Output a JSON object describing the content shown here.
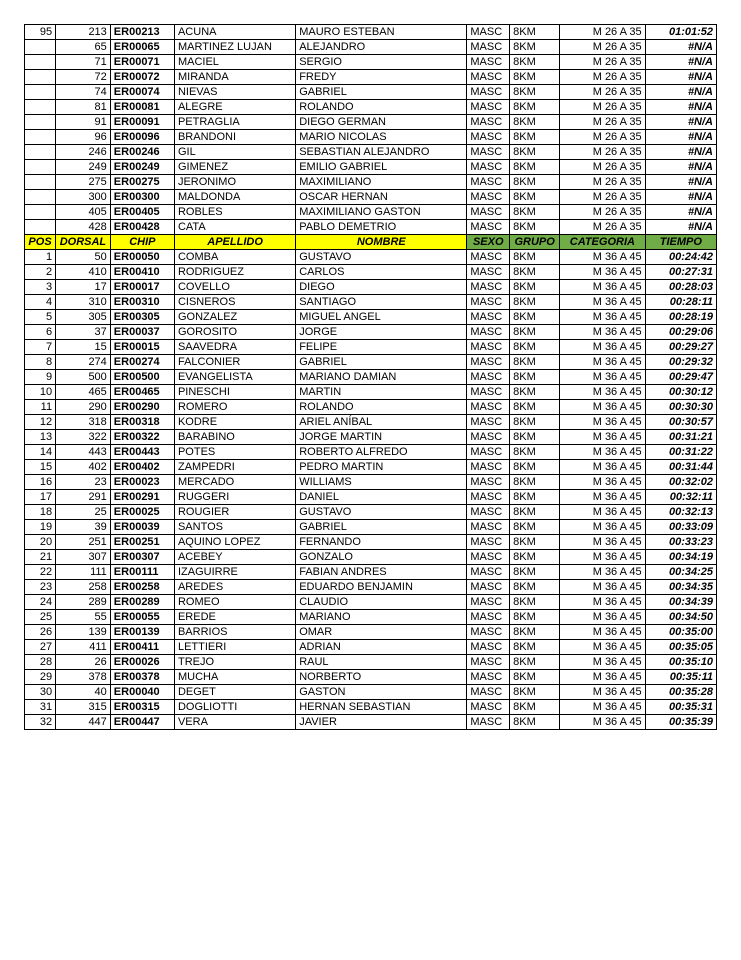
{
  "headers": {
    "pos": "POS",
    "dorsal": "DORSAL",
    "chip": "CHIP",
    "apellido": "APELLIDO",
    "nombre": "NOMBRE",
    "sexo": "SEXO",
    "grupo": "GRUPO",
    "categoria": "CATEGORIA",
    "tiempo": "TIEMPO"
  },
  "top_rows": [
    {
      "pos": "95",
      "dorsal": "213",
      "chip": "ER00213",
      "apellido": "ACUNA",
      "nombre": "MAURO ESTEBAN",
      "sexo": "MASC",
      "grupo": "8KM",
      "cat": "M 26 A 35",
      "tiempo": "01:01:52"
    },
    {
      "pos": "",
      "dorsal": "65",
      "chip": "ER00065",
      "apellido": "MARTINEZ LUJAN",
      "nombre": "ALEJANDRO",
      "sexo": "MASC",
      "grupo": "8KM",
      "cat": "M 26 A 35",
      "tiempo": "#N/A"
    },
    {
      "pos": "",
      "dorsal": "71",
      "chip": "ER00071",
      "apellido": "MACIEL",
      "nombre": "SERGIO",
      "sexo": "MASC",
      "grupo": "8KM",
      "cat": "M 26 A 35",
      "tiempo": "#N/A"
    },
    {
      "pos": "",
      "dorsal": "72",
      "chip": "ER00072",
      "apellido": "MIRANDA",
      "nombre": "FREDY",
      "sexo": "MASC",
      "grupo": "8KM",
      "cat": "M 26 A 35",
      "tiempo": "#N/A"
    },
    {
      "pos": "",
      "dorsal": "74",
      "chip": "ER00074",
      "apellido": "NIEVAS",
      "nombre": "GABRIEL",
      "sexo": "MASC",
      "grupo": "8KM",
      "cat": "M 26 A 35",
      "tiempo": "#N/A"
    },
    {
      "pos": "",
      "dorsal": "81",
      "chip": "ER00081",
      "apellido": "ALEGRE",
      "nombre": "ROLANDO",
      "sexo": "MASC",
      "grupo": "8KM",
      "cat": "M 26 A 35",
      "tiempo": "#N/A"
    },
    {
      "pos": "",
      "dorsal": "91",
      "chip": "ER00091",
      "apellido": "PETRAGLIA",
      "nombre": "DIEGO GERMAN",
      "sexo": "MASC",
      "grupo": "8KM",
      "cat": "M 26 A 35",
      "tiempo": "#N/A"
    },
    {
      "pos": "",
      "dorsal": "96",
      "chip": "ER00096",
      "apellido": "BRANDONI",
      "nombre": "MARIO NICOLAS",
      "sexo": "MASC",
      "grupo": "8KM",
      "cat": "M 26 A 35",
      "tiempo": "#N/A"
    },
    {
      "pos": "",
      "dorsal": "246",
      "chip": "ER00246",
      "apellido": "GIL",
      "nombre": "SEBASTIAN ALEJANDRO",
      "sexo": "MASC",
      "grupo": "8KM",
      "cat": "M 26 A 35",
      "tiempo": "#N/A"
    },
    {
      "pos": "",
      "dorsal": "249",
      "chip": "ER00249",
      "apellido": "GIMENEZ",
      "nombre": "EMILIO GABRIEL",
      "sexo": "MASC",
      "grupo": "8KM",
      "cat": "M 26 A 35",
      "tiempo": "#N/A"
    },
    {
      "pos": "",
      "dorsal": "275",
      "chip": "ER00275",
      "apellido": "JERONIMO",
      "nombre": "MAXIMILIANO",
      "sexo": "MASC",
      "grupo": "8KM",
      "cat": "M 26 A 35",
      "tiempo": "#N/A"
    },
    {
      "pos": "",
      "dorsal": "300",
      "chip": "ER00300",
      "apellido": "MALDONDA",
      "nombre": "OSCAR HERNAN",
      "sexo": "MASC",
      "grupo": "8KM",
      "cat": "M 26 A 35",
      "tiempo": "#N/A"
    },
    {
      "pos": "",
      "dorsal": "405",
      "chip": "ER00405",
      "apellido": "ROBLES",
      "nombre": "MAXIMILIANO GASTON",
      "sexo": "MASC",
      "grupo": "8KM",
      "cat": "M 26 A 35",
      "tiempo": "#N/A"
    },
    {
      "pos": "",
      "dorsal": "428",
      "chip": "ER00428",
      "apellido": "CATA",
      "nombre": "PABLO DEMETRIO",
      "sexo": "MASC",
      "grupo": "8KM",
      "cat": "M 26 A 35",
      "tiempo": "#N/A"
    }
  ],
  "bottom_rows": [
    {
      "pos": "1",
      "dorsal": "50",
      "chip": "ER00050",
      "apellido": "COMBA",
      "nombre": "GUSTAVO",
      "sexo": "MASC",
      "grupo": "8KM",
      "cat": "M 36 A 45",
      "tiempo": "00:24:42"
    },
    {
      "pos": "2",
      "dorsal": "410",
      "chip": "ER00410",
      "apellido": "RODRIGUEZ",
      "nombre": "CARLOS",
      "sexo": "MASC",
      "grupo": "8KM",
      "cat": "M 36 A 45",
      "tiempo": "00:27:31"
    },
    {
      "pos": "3",
      "dorsal": "17",
      "chip": "ER00017",
      "apellido": "COVELLO",
      "nombre": "DIEGO",
      "sexo": "MASC",
      "grupo": "8KM",
      "cat": "M 36 A 45",
      "tiempo": "00:28:03"
    },
    {
      "pos": "4",
      "dorsal": "310",
      "chip": "ER00310",
      "apellido": "CISNEROS",
      "nombre": "SANTIAGO",
      "sexo": "MASC",
      "grupo": "8KM",
      "cat": "M 36 A 45",
      "tiempo": "00:28:11"
    },
    {
      "pos": "5",
      "dorsal": "305",
      "chip": "ER00305",
      "apellido": "GONZALEZ",
      "nombre": "MIGUEL ANGEL",
      "sexo": "MASC",
      "grupo": "8KM",
      "cat": "M 36 A 45",
      "tiempo": "00:28:19"
    },
    {
      "pos": "6",
      "dorsal": "37",
      "chip": "ER00037",
      "apellido": "GOROSITO",
      "nombre": "JORGE",
      "sexo": "MASC",
      "grupo": "8KM",
      "cat": "M 36 A 45",
      "tiempo": "00:29:06"
    },
    {
      "pos": "7",
      "dorsal": "15",
      "chip": "ER00015",
      "apellido": "SAAVEDRA",
      "nombre": "FELIPE",
      "sexo": "MASC",
      "grupo": "8KM",
      "cat": "M 36 A 45",
      "tiempo": "00:29:27"
    },
    {
      "pos": "8",
      "dorsal": "274",
      "chip": "ER00274",
      "apellido": "FALCONIER",
      "nombre": "GABRIEL",
      "sexo": "MASC",
      "grupo": "8KM",
      "cat": "M 36 A 45",
      "tiempo": "00:29:32"
    },
    {
      "pos": "9",
      "dorsal": "500",
      "chip": "ER00500",
      "apellido": "EVANGELISTA",
      "nombre": "MARIANO DAMIAN",
      "sexo": "MASC",
      "grupo": "8KM",
      "cat": "M 36 A 45",
      "tiempo": "00:29:47"
    },
    {
      "pos": "10",
      "dorsal": "465",
      "chip": "ER00465",
      "apellido": "PINESCHI",
      "nombre": "MARTIN",
      "sexo": "MASC",
      "grupo": "8KM",
      "cat": "M 36 A 45",
      "tiempo": "00:30:12"
    },
    {
      "pos": "11",
      "dorsal": "290",
      "chip": "ER00290",
      "apellido": "ROMERO",
      "nombre": "ROLANDO",
      "sexo": "MASC",
      "grupo": "8KM",
      "cat": "M 36 A 45",
      "tiempo": "00:30:30"
    },
    {
      "pos": "12",
      "dorsal": "318",
      "chip": "ER00318",
      "apellido": "KODRE",
      "nombre": "ARIEL ANÍBAL",
      "sexo": "MASC",
      "grupo": "8KM",
      "cat": "M 36 A 45",
      "tiempo": "00:30:57"
    },
    {
      "pos": "13",
      "dorsal": "322",
      "chip": "ER00322",
      "apellido": "BARABINO",
      "nombre": "JORGE MARTIN",
      "sexo": "MASC",
      "grupo": "8KM",
      "cat": "M 36 A 45",
      "tiempo": "00:31:21"
    },
    {
      "pos": "14",
      "dorsal": "443",
      "chip": "ER00443",
      "apellido": "POTES",
      "nombre": "ROBERTO ALFREDO",
      "sexo": "MASC",
      "grupo": "8KM",
      "cat": "M 36 A 45",
      "tiempo": "00:31:22"
    },
    {
      "pos": "15",
      "dorsal": "402",
      "chip": "ER00402",
      "apellido": "ZAMPEDRI",
      "nombre": "PEDRO MARTIN",
      "sexo": "MASC",
      "grupo": "8KM",
      "cat": "M 36 A 45",
      "tiempo": "00:31:44"
    },
    {
      "pos": "16",
      "dorsal": "23",
      "chip": "ER00023",
      "apellido": "MERCADO",
      "nombre": "WILLIAMS",
      "sexo": "MASC",
      "grupo": "8KM",
      "cat": "M 36 A 45",
      "tiempo": "00:32:02"
    },
    {
      "pos": "17",
      "dorsal": "291",
      "chip": "ER00291",
      "apellido": "RUGGERI",
      "nombre": "DANIEL",
      "sexo": "MASC",
      "grupo": "8KM",
      "cat": "M 36 A 45",
      "tiempo": "00:32:11"
    },
    {
      "pos": "18",
      "dorsal": "25",
      "chip": "ER00025",
      "apellido": "ROUGIER",
      "nombre": "GUSTAVO",
      "sexo": "MASC",
      "grupo": "8KM",
      "cat": "M 36 A 45",
      "tiempo": "00:32:13"
    },
    {
      "pos": "19",
      "dorsal": "39",
      "chip": "ER00039",
      "apellido": "SANTOS",
      "nombre": "GABRIEL",
      "sexo": "MASC",
      "grupo": "8KM",
      "cat": "M 36 A 45",
      "tiempo": "00:33:09"
    },
    {
      "pos": "20",
      "dorsal": "251",
      "chip": "ER00251",
      "apellido": "AQUINO LOPEZ",
      "nombre": "FERNANDO",
      "sexo": "MASC",
      "grupo": "8KM",
      "cat": "M 36 A 45",
      "tiempo": "00:33:23"
    },
    {
      "pos": "21",
      "dorsal": "307",
      "chip": "ER00307",
      "apellido": "ACEBEY",
      "nombre": "GONZALO",
      "sexo": "MASC",
      "grupo": "8KM",
      "cat": "M 36 A 45",
      "tiempo": "00:34:19"
    },
    {
      "pos": "22",
      "dorsal": "111",
      "chip": "ER00111",
      "apellido": "IZAGUIRRE",
      "nombre": "FABIAN ANDRES",
      "sexo": "MASC",
      "grupo": "8KM",
      "cat": "M 36 A 45",
      "tiempo": "00:34:25"
    },
    {
      "pos": "23",
      "dorsal": "258",
      "chip": "ER00258",
      "apellido": "AREDES",
      "nombre": "EDUARDO BENJAMIN",
      "sexo": "MASC",
      "grupo": "8KM",
      "cat": "M 36 A 45",
      "tiempo": "00:34:35"
    },
    {
      "pos": "24",
      "dorsal": "289",
      "chip": "ER00289",
      "apellido": "ROMEO",
      "nombre": "CLAUDIO",
      "sexo": "MASC",
      "grupo": "8KM",
      "cat": "M 36 A 45",
      "tiempo": "00:34:39"
    },
    {
      "pos": "25",
      "dorsal": "55",
      "chip": "ER00055",
      "apellido": "EREDE",
      "nombre": "MARIANO",
      "sexo": "MASC",
      "grupo": "8KM",
      "cat": "M 36 A 45",
      "tiempo": "00:34:50"
    },
    {
      "pos": "26",
      "dorsal": "139",
      "chip": "ER00139",
      "apellido": "BARRIOS",
      "nombre": "OMAR",
      "sexo": "MASC",
      "grupo": "8KM",
      "cat": "M 36 A 45",
      "tiempo": "00:35:00"
    },
    {
      "pos": "27",
      "dorsal": "411",
      "chip": "ER00411",
      "apellido": "LETTIERI",
      "nombre": "ADRIAN",
      "sexo": "MASC",
      "grupo": "8KM",
      "cat": "M 36 A 45",
      "tiempo": "00:35:05"
    },
    {
      "pos": "28",
      "dorsal": "26",
      "chip": "ER00026",
      "apellido": "TREJO",
      "nombre": "RAUL",
      "sexo": "MASC",
      "grupo": "8KM",
      "cat": "M 36 A 45",
      "tiempo": "00:35:10"
    },
    {
      "pos": "29",
      "dorsal": "378",
      "chip": "ER00378",
      "apellido": "MUCHA",
      "nombre": "NORBERTO",
      "sexo": "MASC",
      "grupo": "8KM",
      "cat": "M 36 A 45",
      "tiempo": "00:35:11"
    },
    {
      "pos": "30",
      "dorsal": "40",
      "chip": "ER00040",
      "apellido": "DEGET",
      "nombre": "GASTON",
      "sexo": "MASC",
      "grupo": "8KM",
      "cat": "M 36 A 45",
      "tiempo": "00:35:28"
    },
    {
      "pos": "31",
      "dorsal": "315",
      "chip": "ER00315",
      "apellido": "DOGLIOTTI",
      "nombre": "HERNAN SEBASTIAN",
      "sexo": "MASC",
      "grupo": "8KM",
      "cat": "M 36 A 45",
      "tiempo": "00:35:31"
    },
    {
      "pos": "32",
      "dorsal": "447",
      "chip": "ER00447",
      "apellido": "VERA",
      "nombre": "JAVIER",
      "sexo": "MASC",
      "grupo": "8KM",
      "cat": "M 36 A 45",
      "tiempo": "00:35:39"
    }
  ]
}
